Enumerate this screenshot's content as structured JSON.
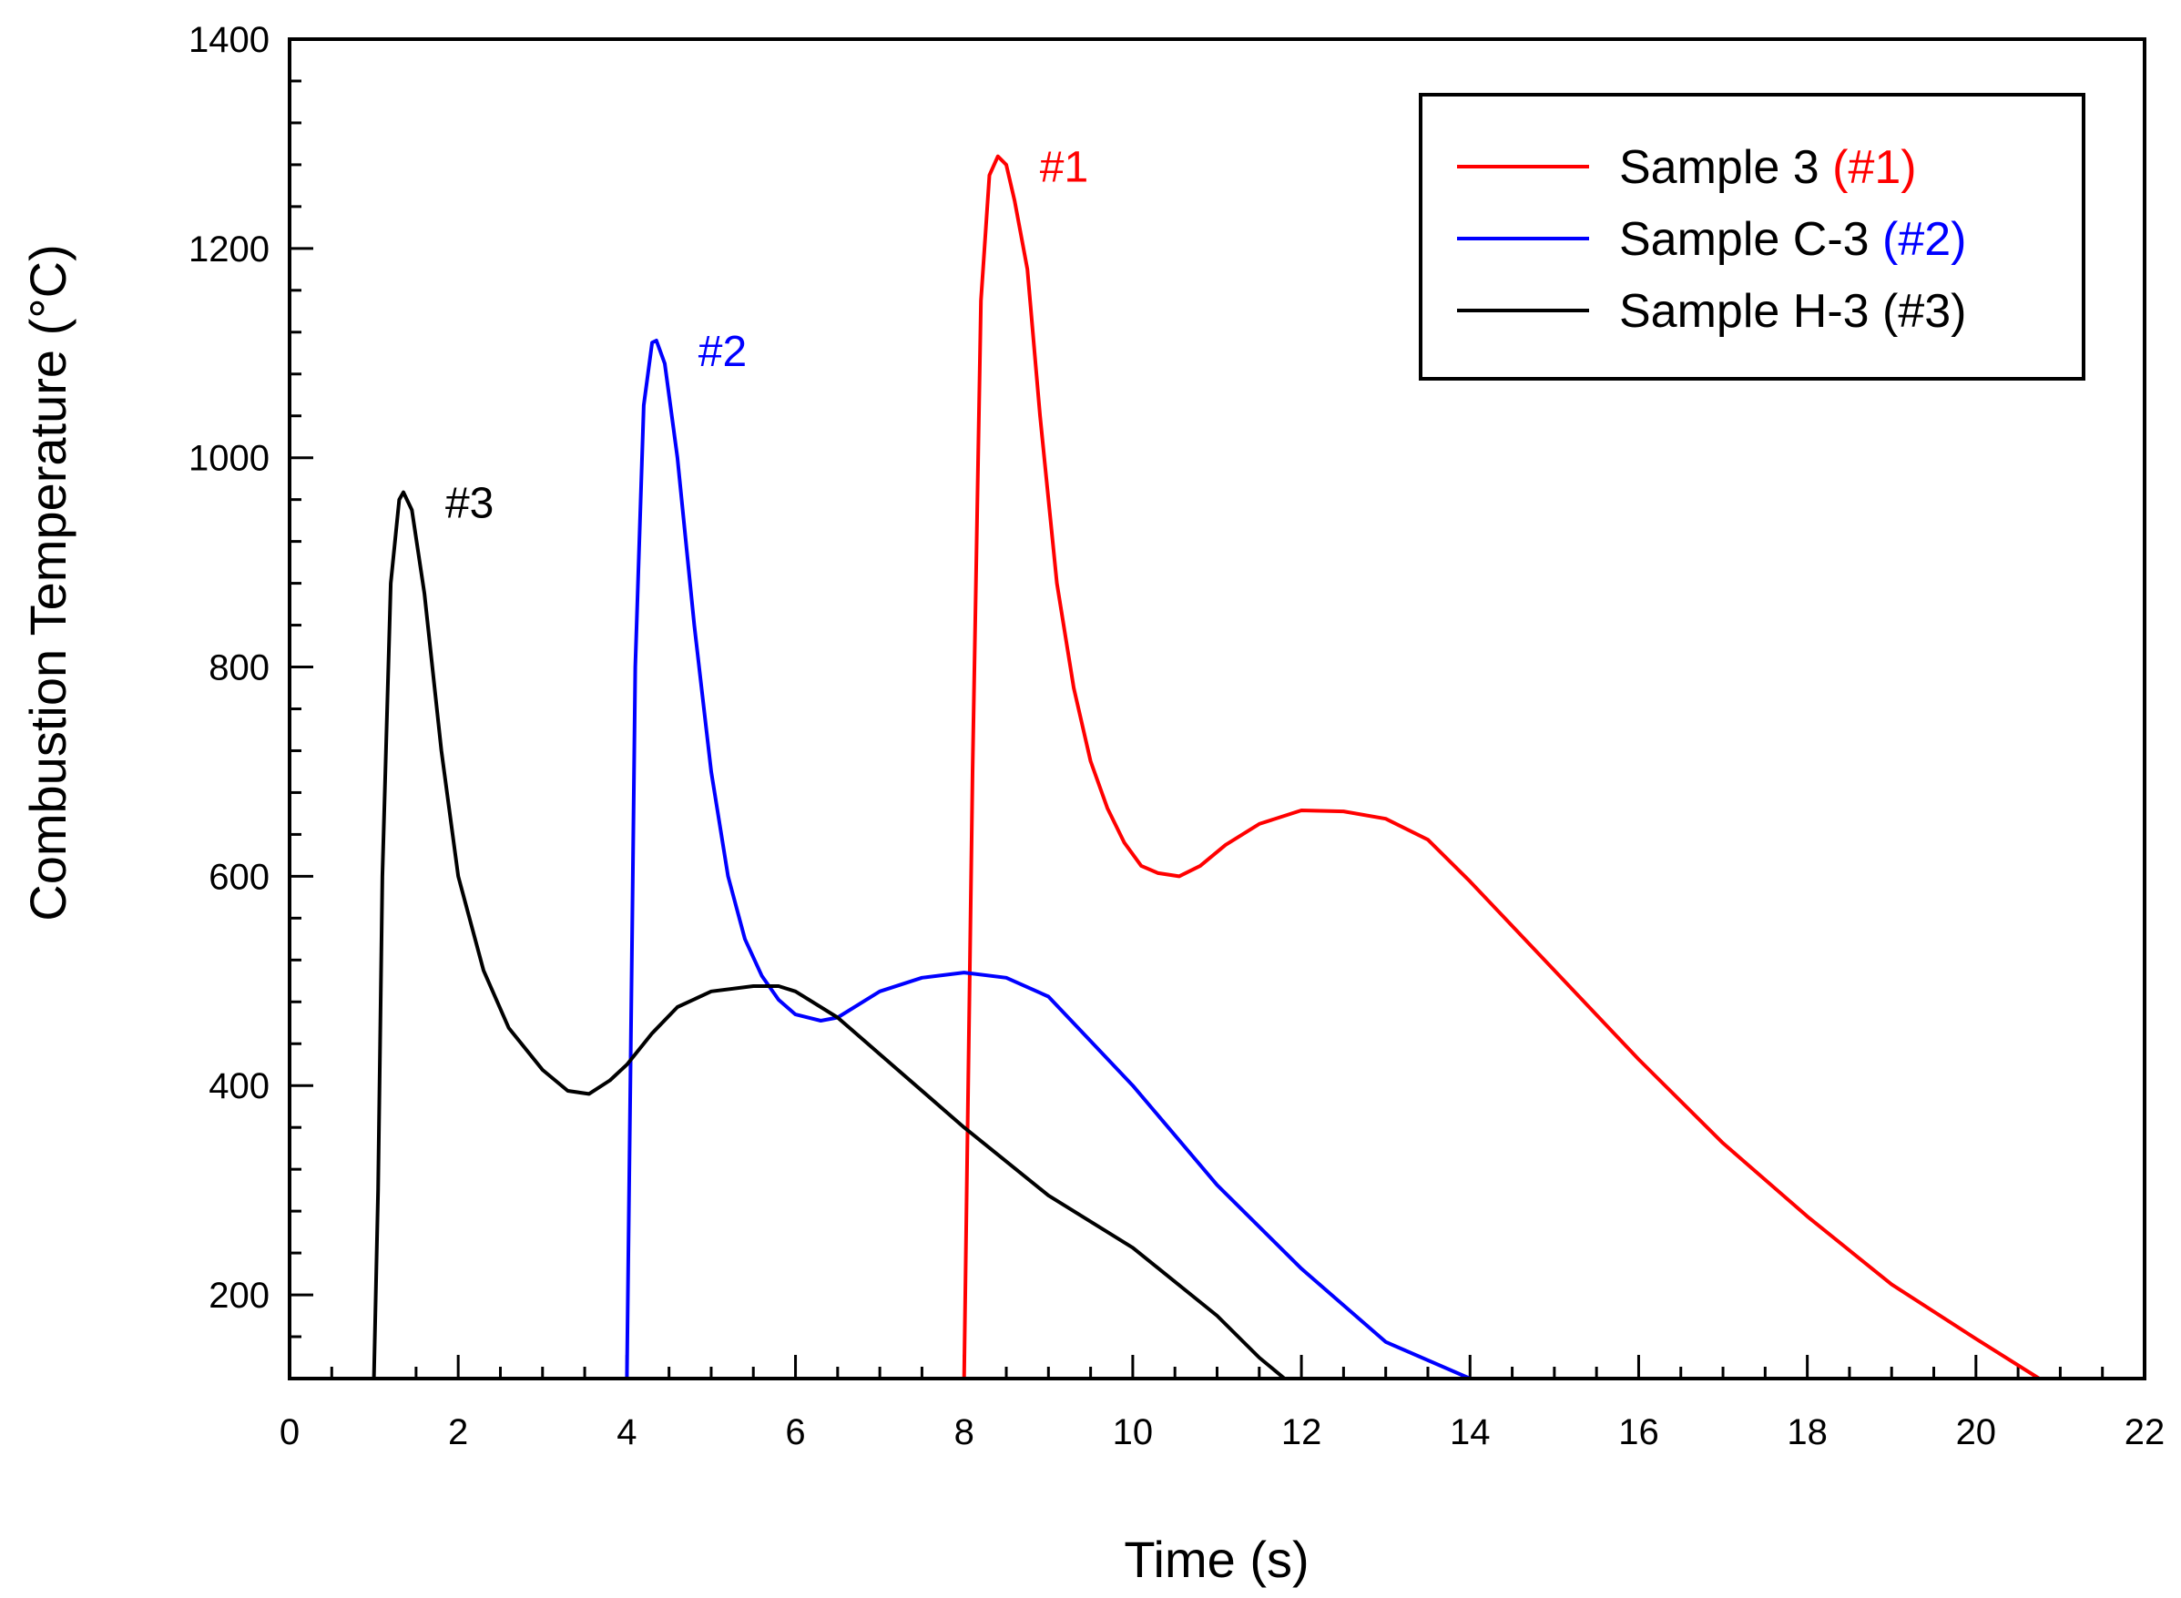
{
  "chart_data": {
    "type": "line",
    "title": "",
    "xlabel": "Time (s)",
    "ylabel": "Combustion Temperature (°C)",
    "xlim": [
      0,
      22
    ],
    "ylim": [
      120,
      1400
    ],
    "xticks": [
      0,
      2,
      4,
      6,
      8,
      10,
      12,
      14,
      16,
      18,
      20,
      22
    ],
    "yticks": [
      200,
      400,
      600,
      800,
      1000,
      1200,
      1400
    ],
    "legend_position": "top-right",
    "series": [
      {
        "name": "Sample 3",
        "tag": "(#1)",
        "color": "#ff0000",
        "annotation": "#1",
        "x": [
          8.0,
          8.1,
          8.2,
          8.3,
          8.4,
          8.5,
          8.6,
          8.75,
          8.9,
          9.1,
          9.3,
          9.5,
          9.7,
          9.9,
          10.1,
          10.3,
          10.55,
          10.8,
          11.1,
          11.5,
          12.0,
          12.5,
          13.0,
          13.5,
          14.0,
          15.0,
          16.0,
          17.0,
          18.0,
          19.0,
          20.0,
          20.75
        ],
        "y": [
          120,
          700,
          1150,
          1270,
          1288,
          1280,
          1245,
          1180,
          1040,
          880,
          780,
          710,
          665,
          632,
          610,
          603,
          600,
          610,
          630,
          650,
          663,
          662,
          655,
          635,
          595,
          510,
          425,
          345,
          275,
          210,
          158,
          120
        ]
      },
      {
        "name": "Sample C-3",
        "tag": "(#2)",
        "color": "#0000ff",
        "annotation": "#2",
        "x": [
          4.0,
          4.1,
          4.2,
          4.3,
          4.35,
          4.45,
          4.6,
          4.8,
          5.0,
          5.2,
          5.4,
          5.6,
          5.8,
          6.0,
          6.3,
          6.5,
          7.0,
          7.5,
          8.0,
          8.5,
          9.0,
          10.0,
          11.0,
          12.0,
          13.0,
          14.0,
          14.3
        ],
        "y": [
          120,
          800,
          1050,
          1110,
          1112,
          1090,
          1000,
          840,
          700,
          600,
          540,
          505,
          482,
          468,
          462,
          465,
          490,
          503,
          508,
          503,
          485,
          400,
          305,
          225,
          155,
          120,
          120
        ]
      },
      {
        "name": "Sample H-3",
        "tag": "(#3)",
        "color": "#000000",
        "annotation": "#3",
        "x": [
          1.0,
          1.05,
          1.1,
          1.2,
          1.3,
          1.35,
          1.45,
          1.6,
          1.8,
          2.0,
          2.3,
          2.6,
          3.0,
          3.3,
          3.55,
          3.8,
          4.0,
          4.3,
          4.6,
          5.0,
          5.5,
          5.8,
          6.0,
          6.5,
          7.0,
          8.0,
          9.0,
          10.0,
          11.0,
          11.5,
          11.8
        ],
        "y": [
          120,
          300,
          600,
          880,
          960,
          967,
          950,
          870,
          720,
          600,
          510,
          455,
          415,
          395,
          392,
          405,
          420,
          450,
          475,
          490,
          495,
          495,
          490,
          465,
          430,
          360,
          295,
          245,
          180,
          140,
          120
        ]
      }
    ]
  }
}
